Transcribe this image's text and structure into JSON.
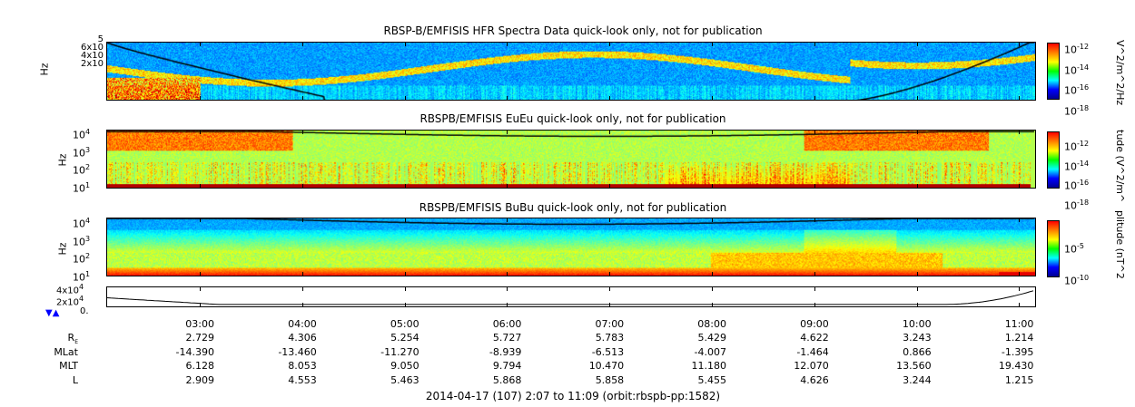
{
  "chart_data": [
    {
      "type": "heatmap",
      "title": "RBSP-B/EMFISIS  HFR Spectra Data quick-look only, not for publication",
      "ylabel": "Hz",
      "yticks": [
        "2x10^5",
        "4x10^5",
        "6x10^5",
        "5"
      ],
      "colorbar": {
        "label": "V^2/m^2/Hz",
        "ticks": [
          "10^-12",
          "10^-14",
          "10^-16",
          "10^-18"
        ],
        "scale": "log",
        "colormap": "jet"
      },
      "overlay": "black density-derived frequency curve"
    },
    {
      "type": "heatmap",
      "title": "RBSPB/EMFISIS  EuEu quick-look only, not for publication",
      "ylabel": "Hz",
      "yscale": "log",
      "yticks": [
        "10^4",
        "10^3",
        "10^2",
        "10^1"
      ],
      "colorbar": {
        "label": "tude (V^2/m^",
        "ticks": [
          "10^-12",
          "10^-14",
          "10^-16",
          "10^-18"
        ],
        "scale": "log",
        "colormap": "jet"
      }
    },
    {
      "type": "heatmap",
      "title": "RBSPB/EMFISIS  BuBu quick-look only, not for publication",
      "ylabel": "Hz",
      "yscale": "log",
      "yticks": [
        "10^4",
        "10^3",
        "10^2",
        "10^1"
      ],
      "colorbar": {
        "label": "plitude (nT^2",
        "ticks": [
          "10^-5",
          "10^-10"
        ],
        "scale": "log",
        "colormap": "jet"
      }
    },
    {
      "type": "line",
      "yticks": [
        "4x10^4",
        "2x10^4",
        "0."
      ],
      "ylim": [
        0,
        40000
      ]
    }
  ],
  "xaxis": {
    "ticks": [
      "03:00",
      "04:00",
      "05:00",
      "06:00",
      "07:00",
      "08:00",
      "09:00",
      "10:00",
      "11:00"
    ],
    "time_range": "2014-04-17 (107) 2:07 to 11:09 (orbit:rbspb-pp:1582)"
  },
  "ephemeris": [
    {
      "label": "R",
      "sub": "E",
      "values": [
        "2.729",
        "4.306",
        "5.254",
        "5.727",
        "5.783",
        "5.429",
        "4.622",
        "3.243",
        "1.214"
      ]
    },
    {
      "label": "MLat",
      "sub": "",
      "values": [
        "-14.390",
        "-13.460",
        "-11.270",
        "-8.939",
        "-6.513",
        "-4.007",
        "-1.464",
        "0.866",
        "-1.395"
      ]
    },
    {
      "label": "MLT",
      "sub": "",
      "values": [
        "6.128",
        "8.053",
        "9.050",
        "9.794",
        "10.470",
        "11.180",
        "12.070",
        "13.560",
        "19.430"
      ]
    },
    {
      "label": "L",
      "sub": "",
      "values": [
        "2.909",
        "4.553",
        "5.463",
        "5.868",
        "5.858",
        "5.455",
        "4.626",
        "3.244",
        "1.215"
      ]
    }
  ]
}
